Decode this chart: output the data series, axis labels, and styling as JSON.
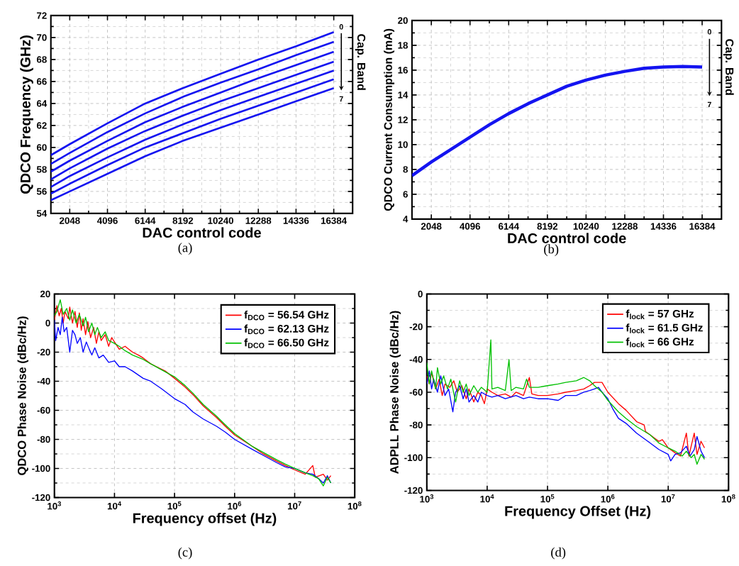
{
  "chart_data": [
    {
      "type": "line",
      "xlabel": "DAC control code",
      "ylabel": "QDCO Frequency (GHz)",
      "x": [
        1024,
        2048,
        4096,
        6144,
        8192,
        10240,
        12288,
        14336,
        16384
      ],
      "series": [
        {
          "color": "#1414f0",
          "values": [
            59.3,
            60.3,
            62.2,
            64.0,
            65.4,
            66.7,
            68.0,
            69.2,
            70.5
          ]
        },
        {
          "color": "#1414f0",
          "values": [
            58.5,
            59.5,
            61.4,
            63.1,
            64.6,
            65.9,
            67.1,
            68.4,
            69.6
          ]
        },
        {
          "color": "#1414f0",
          "values": [
            57.8,
            58.8,
            60.6,
            62.3,
            63.7,
            65.0,
            66.3,
            67.5,
            68.7
          ]
        },
        {
          "color": "#1414f0",
          "values": [
            57.1,
            58.1,
            59.9,
            61.5,
            62.9,
            64.2,
            65.4,
            66.6,
            67.8
          ]
        },
        {
          "color": "#1414f0",
          "values": [
            56.4,
            57.4,
            59.1,
            60.7,
            62.1,
            63.4,
            64.6,
            65.8,
            67.0
          ]
        },
        {
          "color": "#1414f0",
          "values": [
            55.8,
            56.7,
            58.4,
            60.0,
            61.3,
            62.6,
            63.8,
            65.0,
            66.2
          ]
        },
        {
          "color": "#1414f0",
          "values": [
            55.2,
            56.0,
            57.6,
            59.2,
            60.6,
            61.8,
            63.0,
            64.2,
            65.4
          ]
        }
      ],
      "xlim": [
        1024,
        17408
      ],
      "ylim": [
        54,
        72
      ],
      "xticks": [
        2048,
        4096,
        6144,
        8192,
        10240,
        12288,
        14336,
        16384
      ],
      "yticks": [
        54,
        56,
        58,
        60,
        62,
        64,
        66,
        68,
        70,
        72
      ],
      "grid": true,
      "annotations": [
        "0",
        "7",
        "Cap. Band",
        "(a)"
      ]
    },
    {
      "type": "line",
      "xlabel": "DAC control code",
      "ylabel": "QDCO Current Consumption (mA)",
      "x": [
        1024,
        2048,
        3072,
        4096,
        5120,
        6144,
        7168,
        8192,
        9216,
        10240,
        11264,
        12288,
        13312,
        14336,
        15360,
        16384
      ],
      "series": [
        {
          "color": "#1414f0",
          "values": [
            7.5,
            8.6,
            9.6,
            10.6,
            11.6,
            12.5,
            13.3,
            14.0,
            14.7,
            15.2,
            15.6,
            15.9,
            16.15,
            16.25,
            16.3,
            16.25
          ]
        }
      ],
      "xlim": [
        1024,
        17408
      ],
      "ylim": [
        4,
        20
      ],
      "xticks": [
        2048,
        4096,
        6144,
        8192,
        10240,
        12288,
        14336,
        16384
      ],
      "yticks": [
        4,
        6,
        8,
        10,
        12,
        14,
        16,
        18,
        20
      ],
      "grid": true,
      "annotations": [
        "0",
        "7",
        "Cap. Band",
        "(b)"
      ]
    },
    {
      "type": "line",
      "xlabel": "Frequency offset (Hz)",
      "ylabel": "QDCO Phase Noise (dBc/Hz)",
      "log": "x",
      "series": [
        {
          "name": "f$_{DCO}$ = 56.54 GHz",
          "color": "#ff0000",
          "x": [
            1000,
            1100,
            1200,
            1300,
            1400,
            1500,
            1700,
            1800,
            2000,
            2200,
            2400,
            2600,
            2800,
            3000,
            3300,
            3600,
            4000,
            4500,
            5000,
            5500,
            6000,
            7000,
            8000,
            9000,
            10000,
            12000,
            15000,
            20000,
            25000,
            30000,
            40000,
            50000,
            70000,
            100000,
            150000,
            200000,
            300000,
            500000,
            700000,
            1000000,
            2000000,
            3000000,
            5000000,
            7000000,
            10000000,
            15000000,
            20000000,
            22000000,
            30000000,
            35000000,
            40000000
          ],
          "values": [
            2,
            12,
            5,
            10,
            0,
            8,
            3,
            11,
            0,
            8,
            -3,
            7,
            -5,
            3,
            -8,
            1,
            -10,
            -3,
            -14,
            -6,
            -12,
            -8,
            -16,
            -10,
            -13,
            -18,
            -16,
            -20,
            -22,
            -24,
            -28,
            -30,
            -33,
            -38,
            -44,
            -49,
            -57,
            -65,
            -71,
            -77,
            -85,
            -90,
            -95,
            -98,
            -101,
            -104,
            -98,
            -106,
            -104,
            -108,
            -105
          ]
        },
        {
          "name": "f$_{DCO}$ = 62.13 GHz",
          "color": "#0000ff",
          "x": [
            1000,
            1050,
            1150,
            1250,
            1350,
            1450,
            1600,
            1800,
            2000,
            2200,
            2400,
            2700,
            3000,
            3400,
            3800,
            4200,
            4700,
            5500,
            6500,
            8000,
            10000,
            12000,
            15000,
            20000,
            30000,
            40000,
            60000,
            100000,
            150000,
            200000,
            300000,
            500000,
            700000,
            1000000,
            2000000,
            3000000,
            5000000,
            7000000,
            10000000,
            15000000,
            20000000,
            25000000,
            30000000,
            35000000,
            40000000
          ],
          "values": [
            2,
            -12,
            -3,
            -8,
            4,
            -6,
            -3,
            -20,
            -5,
            -8,
            -14,
            -10,
            -20,
            -13,
            -18,
            -22,
            -17,
            -24,
            -22,
            -27,
            -26,
            -30,
            -30,
            -33,
            -38,
            -40,
            -45,
            -52,
            -56,
            -61,
            -66,
            -71,
            -75,
            -80,
            -87,
            -91,
            -96,
            -99,
            -100,
            -103,
            -104,
            -107,
            -110,
            -105,
            -110
          ]
        },
        {
          "name": "f$_{DCO}$ = 66.50 GHz",
          "color": "#00c000",
          "x": [
            1000,
            1100,
            1250,
            1400,
            1600,
            1800,
            2000,
            2300,
            2600,
            3000,
            3300,
            3700,
            4200,
            4700,
            5200,
            6000,
            7000,
            8000,
            10000,
            12000,
            15000,
            20000,
            30000,
            40000,
            60000,
            100000,
            150000,
            200000,
            300000,
            500000,
            700000,
            1000000,
            2000000,
            3000000,
            5000000,
            7000000,
            10000000,
            15000000,
            20000000,
            25000000,
            30000000,
            35000000,
            40000000
          ],
          "values": [
            5,
            8,
            16,
            6,
            10,
            2,
            9,
            0,
            6,
            -2,
            4,
            -6,
            0,
            -8,
            -3,
            -10,
            -6,
            -12,
            -14,
            -16,
            -19,
            -22,
            -25,
            -28,
            -32,
            -37,
            -43,
            -48,
            -56,
            -64,
            -70,
            -76,
            -85,
            -89,
            -94,
            -97,
            -100,
            -103,
            -105,
            -107,
            -112,
            -106,
            -110
          ]
        }
      ],
      "xlim": [
        1000,
        100000000
      ],
      "ylim": [
        -120,
        20
      ],
      "xticks": [
        {
          "value": 1000,
          "label": "10$^{3}$"
        },
        {
          "value": 10000,
          "label": "10$^{4}$"
        },
        {
          "value": 100000,
          "label": "10$^{5}$"
        },
        {
          "value": 1000000,
          "label": "10$^{6}$"
        },
        {
          "value": 10000000,
          "label": "10$^{7}$"
        },
        {
          "value": 100000000,
          "label": "10$^{8}$"
        }
      ],
      "yticks": [
        -120,
        -100,
        -80,
        -60,
        -40,
        -20,
        0,
        20
      ],
      "grid": true,
      "legend": "top right",
      "annotations": [
        "(c)"
      ]
    },
    {
      "type": "line",
      "xlabel": "Frequency Offset (Hz)",
      "ylabel": "ADPLL Phase Noise (dBc/Hz)",
      "log": "x",
      "series": [
        {
          "name": "f$_{lock}$ = 57 GHz",
          "color": "#ff0000",
          "x": [
            1000,
            1100,
            1200,
            1400,
            1600,
            1800,
            2000,
            2400,
            2800,
            3200,
            3800,
            4500,
            5000,
            6000,
            7000,
            8000,
            9000,
            10000,
            12000,
            15000,
            20000,
            25000,
            30000,
            40000,
            50000,
            55000,
            70000,
            100000,
            150000,
            200000,
            300000,
            400000,
            500000,
            600000,
            800000,
            1000000,
            1500000,
            2000000,
            3000000,
            4000000,
            4200000,
            5000000,
            7000000,
            8000000,
            10000000,
            13000000,
            16000000,
            20000000,
            22000000,
            27000000,
            30000000,
            35000000,
            40000000
          ],
          "values": [
            -50,
            -55,
            -48,
            -58,
            -52,
            -62,
            -55,
            -57,
            -53,
            -60,
            -56,
            -64,
            -58,
            -66,
            -60,
            -62,
            -67,
            -58,
            -60,
            -62,
            -61,
            -63,
            -60,
            -62,
            -51,
            -61,
            -62,
            -62,
            -61,
            -60,
            -59,
            -58,
            -56,
            -54,
            -54,
            -60,
            -67,
            -71,
            -78,
            -80,
            -84,
            -86,
            -90,
            -89,
            -94,
            -97,
            -99,
            -85,
            -99,
            -85,
            -98,
            -90,
            -94
          ]
        },
        {
          "name": "f$_{lock}$ = 61.5 GHz",
          "color": "#0000ff",
          "x": [
            1000,
            1100,
            1200,
            1300,
            1500,
            1700,
            2000,
            2300,
            2700,
            3000,
            3500,
            4000,
            4500,
            5000,
            6000,
            7000,
            8000,
            10000,
            12000,
            15000,
            20000,
            30000,
            40000,
            50000,
            70000,
            100000,
            150000,
            200000,
            300000,
            400000,
            500000,
            600000,
            700000,
            800000,
            1000000,
            1200000,
            1500000,
            2000000,
            3000000,
            5000000,
            7000000,
            10000000,
            11000000,
            13000000,
            16000000,
            20000000,
            23000000,
            27000000,
            30000000,
            35000000,
            40000000
          ],
          "values": [
            -55,
            -47,
            -58,
            -52,
            -60,
            -50,
            -62,
            -58,
            -72,
            -60,
            -56,
            -64,
            -58,
            -66,
            -62,
            -66,
            -60,
            -62,
            -63,
            -62,
            -64,
            -62,
            -64,
            -63,
            -64,
            -64,
            -65,
            -62,
            -62,
            -60,
            -59,
            -58,
            -57,
            -60,
            -64,
            -70,
            -76,
            -79,
            -85,
            -91,
            -95,
            -98,
            -102,
            -98,
            -97,
            -93,
            -99,
            -95,
            -87,
            -96,
            -100
          ]
        },
        {
          "name": "f$_{lock}$ = 66 GHz",
          "color": "#00c000",
          "x": [
            1000,
            1100,
            1200,
            1400,
            1500,
            1700,
            1900,
            2200,
            2500,
            3000,
            3500,
            4000,
            4500,
            5000,
            6000,
            7000,
            8000,
            10000,
            11500,
            12000,
            15000,
            20000,
            23000,
            25000,
            30000,
            40000,
            45000,
            50000,
            70000,
            100000,
            150000,
            200000,
            300000,
            400000,
            500000,
            600000,
            800000,
            1000000,
            1500000,
            2000000,
            3000000,
            5000000,
            7000000,
            10000000,
            13000000,
            17000000,
            20000000,
            24000000,
            27000000,
            30000000,
            35000000,
            40000000
          ],
          "values": [
            -42,
            -55,
            -47,
            -58,
            -45,
            -55,
            -50,
            -58,
            -52,
            -66,
            -53,
            -60,
            -55,
            -62,
            -56,
            -60,
            -57,
            -60,
            -28,
            -58,
            -57,
            -59,
            -40,
            -59,
            -57,
            -58,
            -52,
            -57,
            -57,
            -56,
            -55,
            -54,
            -53,
            -51,
            -53,
            -56,
            -60,
            -65,
            -72,
            -76,
            -81,
            -86,
            -91,
            -94,
            -96,
            -99,
            -96,
            -100,
            -98,
            -104,
            -98,
            -101
          ]
        }
      ],
      "xlim": [
        1000,
        100000000
      ],
      "ylim": [
        -120,
        0
      ],
      "xticks": [
        {
          "value": 1000,
          "label": "10$^{3}$"
        },
        {
          "value": 10000,
          "label": "10$^{4}$"
        },
        {
          "value": 100000,
          "label": "10$^{5}$"
        },
        {
          "value": 1000000,
          "label": "10$^{6}$"
        },
        {
          "value": 10000000,
          "label": "10$^{7}$"
        },
        {
          "value": 100000000,
          "label": "10$^{8}$"
        }
      ],
      "yticks": [
        -120,
        -100,
        -80,
        -60,
        -40,
        -20,
        0
      ],
      "grid": true,
      "legend": "top right",
      "annotations": [
        "(d)"
      ]
    }
  ]
}
